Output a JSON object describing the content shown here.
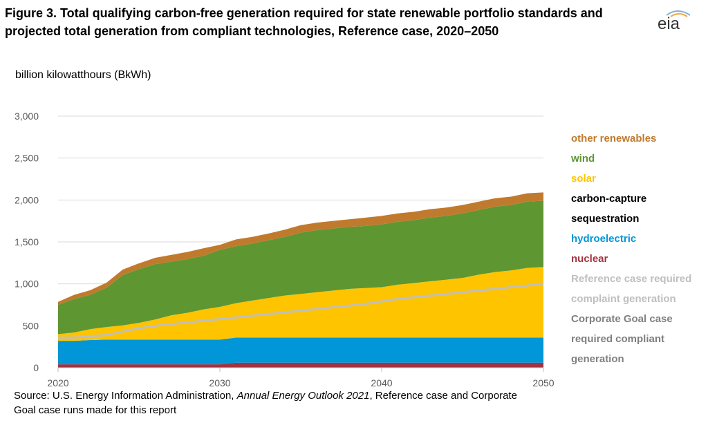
{
  "header": {
    "title": "Figure 3. Total qualifying carbon-free generation required for state renewable portfolio standards and projected total generation from compliant technologies, Reference case, 2020–2050",
    "logo_text": "eia"
  },
  "source": {
    "prefix": "Source: U.S. Energy Information Administration,",
    "publication": "Annual Energy Outlook 2021",
    "suffix": ", Reference case and Corporate Goal case runs made for this report"
  },
  "colors": {
    "other_renewables": "#C07A2E",
    "wind": "#5E9632",
    "solar": "#FFC400",
    "carbon_capture": "#000000",
    "hydroelectric": "#0096D7",
    "nuclear": "#A33340",
    "reference_required": "#BFBFBF",
    "corporate_required": "#808080",
    "axis_text": "#595959",
    "gridline": "#D9D9D9"
  },
  "chart_data": {
    "type": "area",
    "title": "",
    "ylabel": "billion kilowatthours (BkWh)",
    "xlabel": "",
    "ylim": [
      0,
      3000
    ],
    "xlim": [
      2020,
      2050
    ],
    "y_ticks": [
      "0",
      "500",
      "1,000",
      "1,500",
      "2,000",
      "2,500",
      "3,000"
    ],
    "y_tick_values": [
      0,
      500,
      1000,
      1500,
      2000,
      2500,
      3000
    ],
    "x_ticks": [
      "2020",
      "2030",
      "2040",
      "2050"
    ],
    "x_tick_values": [
      2020,
      2030,
      2040,
      2050
    ],
    "grid": true,
    "legend_position": "right",
    "legend": [
      {
        "label": "other renewables",
        "color_key": "other_renewables"
      },
      {
        "label": "wind",
        "color_key": "wind"
      },
      {
        "label": "solar",
        "color_key": "solar"
      },
      {
        "label": "carbon-capture",
        "color_key": "carbon_capture"
      },
      {
        "label": "sequestration",
        "color_key": "carbon_capture"
      },
      {
        "label": "hydroelectric",
        "color_key": "hydroelectric"
      },
      {
        "label": "nuclear",
        "color_key": "nuclear"
      },
      {
        "label": "Reference case required",
        "color_key": "reference_required"
      },
      {
        "label": "complaint generation",
        "color_key": "reference_required"
      },
      {
        "label": "Corporate Goal case",
        "color_key": "corporate_required"
      },
      {
        "label": "required compliant",
        "color_key": "corporate_required"
      },
      {
        "label": "generation",
        "color_key": "corporate_required"
      }
    ],
    "x": [
      2020,
      2021,
      2022,
      2023,
      2024,
      2025,
      2026,
      2027,
      2028,
      2029,
      2030,
      2031,
      2032,
      2033,
      2034,
      2035,
      2036,
      2037,
      2038,
      2039,
      2040,
      2041,
      2042,
      2043,
      2044,
      2045,
      2046,
      2047,
      2048,
      2049,
      2050
    ],
    "series": [
      {
        "name": "nuclear",
        "color_key": "nuclear",
        "kind": "area",
        "values": [
          40,
          40,
          40,
          40,
          40,
          40,
          40,
          40,
          40,
          40,
          40,
          60,
          60,
          60,
          60,
          60,
          60,
          60,
          60,
          60,
          60,
          60,
          60,
          60,
          60,
          60,
          60,
          60,
          60,
          60,
          60
        ]
      },
      {
        "name": "hydroelectric",
        "color_key": "hydroelectric",
        "kind": "area",
        "values": [
          280,
          280,
          290,
          295,
          295,
          295,
          295,
          295,
          295,
          295,
          295,
          300,
          300,
          300,
          300,
          300,
          300,
          300,
          300,
          300,
          300,
          300,
          300,
          300,
          300,
          300,
          300,
          300,
          300,
          300,
          300
        ]
      },
      {
        "name": "carbon-capture sequestration",
        "color_key": "carbon_capture",
        "kind": "area",
        "values": [
          0,
          0,
          0,
          0,
          0,
          0,
          0,
          0,
          0,
          0,
          0,
          0,
          0,
          0,
          0,
          0,
          0,
          0,
          0,
          0,
          0,
          0,
          0,
          0,
          0,
          0,
          0,
          0,
          0,
          0,
          0
        ]
      },
      {
        "name": "solar",
        "color_key": "solar",
        "kind": "area",
        "values": [
          80,
          100,
          130,
          150,
          170,
          200,
          240,
          290,
          320,
          360,
          390,
          410,
          440,
          470,
          500,
          520,
          540,
          560,
          580,
          590,
          600,
          630,
          650,
          670,
          690,
          710,
          750,
          780,
          800,
          830,
          840
        ]
      },
      {
        "name": "wind",
        "color_key": "wind",
        "kind": "area",
        "values": [
          350,
          400,
          410,
          470,
          600,
          640,
          660,
          640,
          640,
          640,
          680,
          680,
          680,
          690,
          700,
          730,
          740,
          740,
          740,
          740,
          750,
          750,
          750,
          760,
          760,
          770,
          770,
          780,
          780,
          790,
          790
        ]
      },
      {
        "name": "other renewables",
        "color_key": "other_renewables",
        "kind": "area",
        "values": [
          35,
          50,
          55,
          60,
          65,
          70,
          75,
          80,
          85,
          90,
          60,
          80,
          80,
          80,
          85,
          90,
          90,
          90,
          90,
          100,
          100,
          100,
          100,
          100,
          100,
          100,
          100,
          100,
          100,
          100,
          100
        ]
      },
      {
        "name": "Reference case required complaint generation",
        "color_key": "reference_required",
        "kind": "line",
        "values": [
          360,
          360,
          375,
          390,
          430,
          470,
          500,
          520,
          540,
          560,
          580,
          600,
          620,
          640,
          660,
          680,
          700,
          720,
          740,
          760,
          790,
          820,
          840,
          860,
          880,
          900,
          920,
          940,
          960,
          980,
          1000
        ]
      }
    ]
  }
}
